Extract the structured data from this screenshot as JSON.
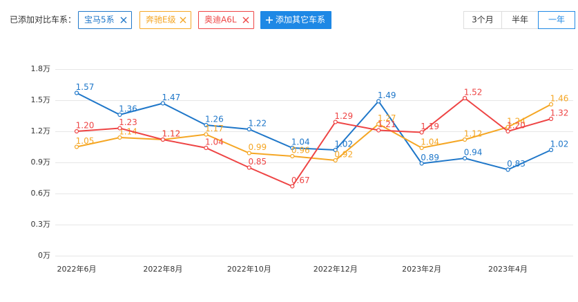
{
  "toolbar": {
    "label": "已添加对比车系：",
    "add_button": "添加其它车系",
    "ranges": [
      "3个月",
      "半年",
      "一年"
    ],
    "selected_range": 2
  },
  "chart_data": {
    "type": "line",
    "categories": [
      "2022年6月",
      null,
      "2022年8月",
      null,
      "2022年10月",
      null,
      "2022年12月",
      null,
      "2023年2月",
      null,
      "2023年4月",
      null
    ],
    "series": [
      {
        "name": "宝马5系",
        "color": "#1f77c9",
        "values": [
          1.57,
          1.36,
          1.47,
          1.26,
          1.22,
          1.04,
          1.02,
          1.49,
          0.89,
          0.94,
          0.83,
          1.02
        ],
        "value_labels": [
          "1.57",
          "1.36",
          "1.47",
          "1.26",
          "1.22",
          "1.04",
          "1.02",
          "1.49",
          "0.89",
          "0.94",
          "0.83",
          "1.02"
        ]
      },
      {
        "name": "奔驰E级",
        "color": "#f5a623",
        "values": [
          1.05,
          1.14,
          1.12,
          1.17,
          0.99,
          0.96,
          0.92,
          1.27,
          1.04,
          1.12,
          1.24,
          1.46
        ],
        "value_labels": [
          "1.05",
          "1.14",
          "1.12",
          "1.17",
          "0.99",
          "0.96",
          "0.92",
          "1.27",
          "1.04",
          "1.12",
          "1.24",
          "1.46"
        ]
      },
      {
        "name": "奥迪A6L",
        "color": "#ee4444",
        "values": [
          1.2,
          1.23,
          1.12,
          1.04,
          0.85,
          0.67,
          1.29,
          1.21,
          1.19,
          1.52,
          1.2,
          1.32
        ],
        "value_labels": [
          "1.20",
          "1.23",
          "1.12",
          "1.04",
          "0.85",
          "0.67",
          "1.29",
          "1.21",
          "1.19",
          "1.52",
          "1.20",
          "1.32"
        ]
      }
    ],
    "ylim": [
      0,
      1.8
    ],
    "yticks": [
      {
        "value": 0,
        "label": "0万"
      },
      {
        "value": 0.3,
        "label": "0.3万"
      },
      {
        "value": 0.6,
        "label": "0.6万"
      },
      {
        "value": 0.9,
        "label": "0.9万"
      },
      {
        "value": 1.2,
        "label": "1.2万"
      },
      {
        "value": 1.5,
        "label": "1.5万"
      },
      {
        "value": 1.8,
        "label": "1.8万"
      }
    ],
    "grid": true
  }
}
